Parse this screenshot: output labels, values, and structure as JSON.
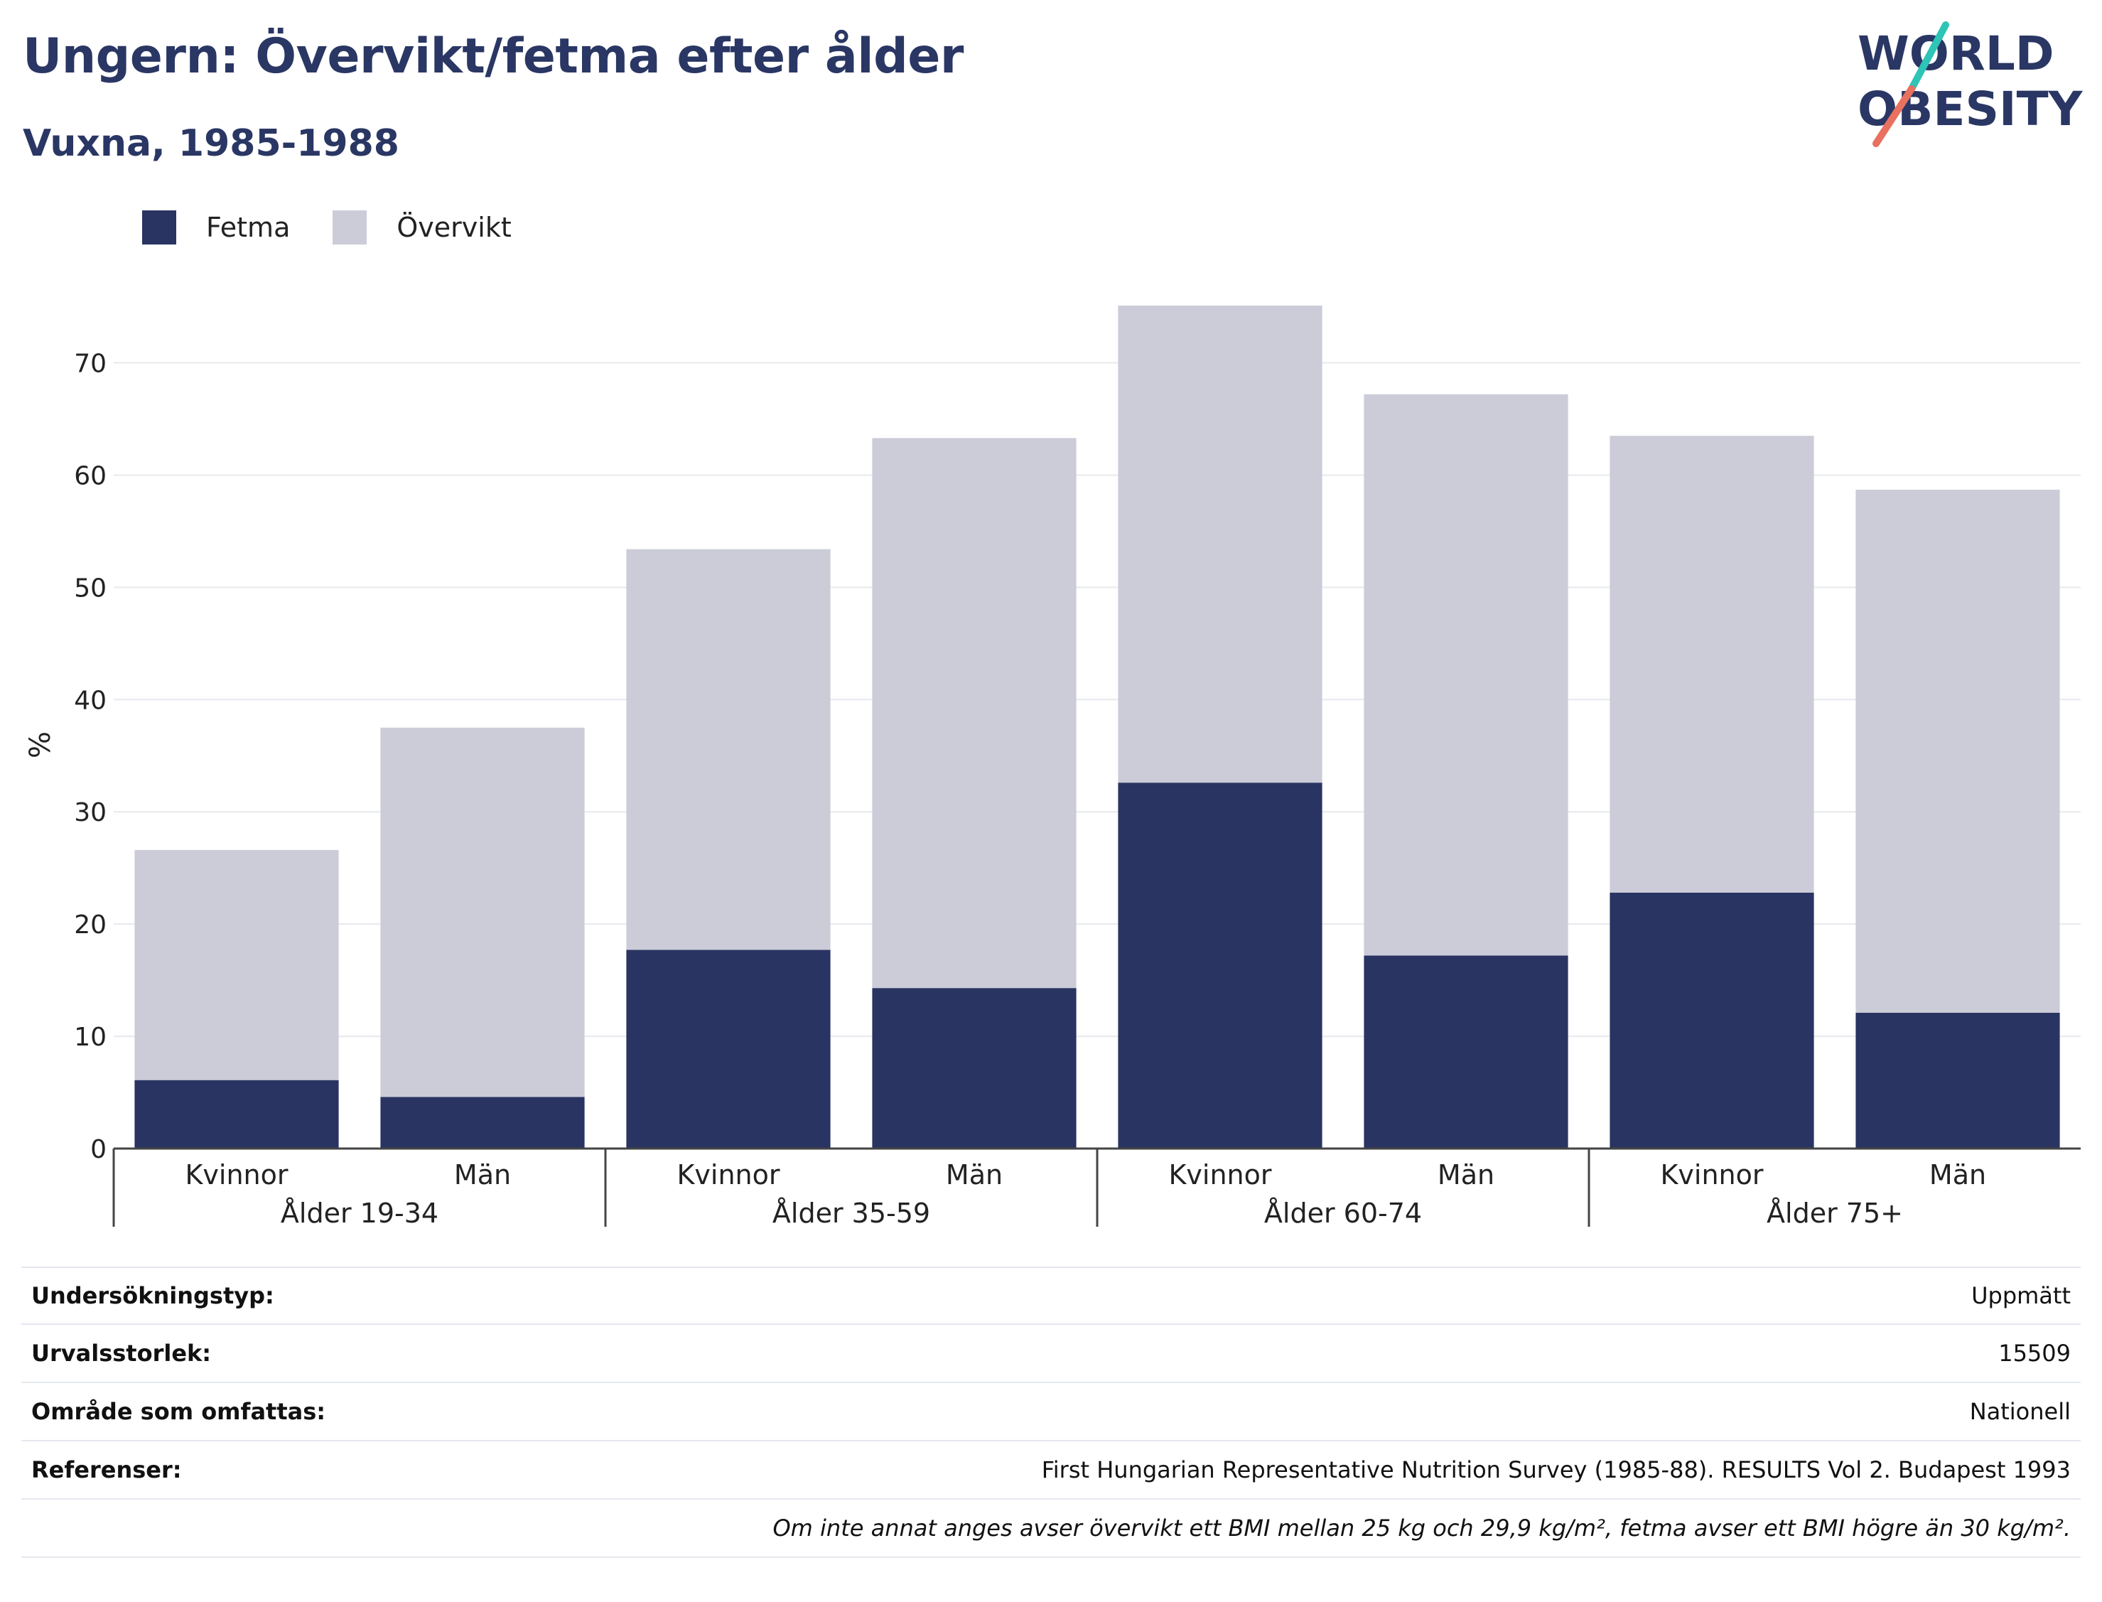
{
  "header": {
    "title": "Ungern: Övervikt/fetma efter ålder",
    "subtitle": "Vuxna, 1985-1988"
  },
  "logo": {
    "line1": "WORLD",
    "line2": "OBESITY",
    "accent_colors": [
      "#2ec4b6",
      "#e8715f"
    ]
  },
  "legend": [
    {
      "name": "Fetma",
      "color": "#293462"
    },
    {
      "name": "Övervikt",
      "color": "#cbccd8"
    }
  ],
  "chart_data": {
    "type": "bar",
    "stacked": true,
    "ylabel": "%",
    "ylim": [
      0,
      77
    ],
    "yticks": [
      0,
      10,
      20,
      30,
      40,
      50,
      60,
      70
    ],
    "grid": true,
    "legend_position": "top-left",
    "categories": [
      "Kvinnor",
      "Män",
      "Kvinnor",
      "Män",
      "Kvinnor",
      "Män",
      "Kvinnor",
      "Män"
    ],
    "groups": [
      "Ålder 19-34",
      "Ålder 35-59",
      "Ålder 60-74",
      "Ålder 75+"
    ],
    "series": [
      {
        "name": "Fetma",
        "color": "#293462",
        "values": [
          6.1,
          4.6,
          17.7,
          14.3,
          32.6,
          17.2,
          22.8,
          12.1
        ]
      },
      {
        "name": "Övervikt",
        "color": "#cbccd8",
        "values": [
          20.5,
          32.9,
          35.7,
          49.0,
          42.5,
          50.0,
          40.7,
          46.6
        ]
      }
    ]
  },
  "info": {
    "rows": [
      {
        "label": "Undersökningstyp:",
        "value": "Uppmätt"
      },
      {
        "label": "Urvalsstorlek:",
        "value": "15509"
      },
      {
        "label": "Område som omfattas:",
        "value": "Nationell"
      },
      {
        "label": "Referenser:",
        "value": "First Hungarian Representative Nutrition Survey (1985-88). RESULTS Vol 2. Budapest 1993"
      }
    ],
    "note": "Om inte annat anges avser övervikt ett BMI mellan 25 kg och 29,9 kg/m², fetma avser ett BMI högre än 30 kg/m²."
  }
}
